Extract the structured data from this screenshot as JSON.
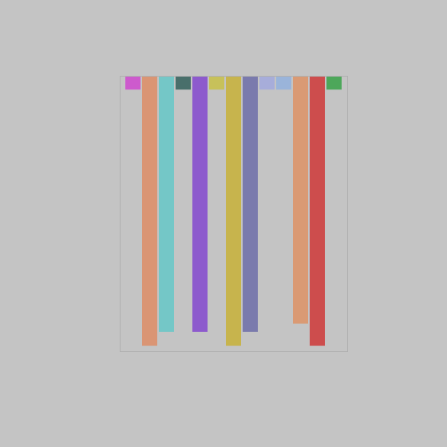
{
  "chart_data": {
    "type": "bar",
    "categories": [
      null,
      null,
      null,
      null,
      null,
      null,
      null,
      null,
      null,
      null,
      null,
      null,
      null
    ],
    "values": [
      5,
      98,
      93,
      5,
      93,
      5,
      98,
      93,
      5,
      5,
      90,
      98,
      5
    ],
    "colors": [
      "#d040d0",
      "#e08a60",
      "#60c8c8",
      "#2a5a55",
      "#8040d0",
      "#c8c040",
      "#c8b030",
      "#6868a8",
      "#a0a8e0",
      "#90b0e0",
      "#e09060",
      "#d03030",
      "#30a040"
    ],
    "ylim": [
      0,
      100
    ],
    "yticks": [],
    "tick_labels": false
  }
}
